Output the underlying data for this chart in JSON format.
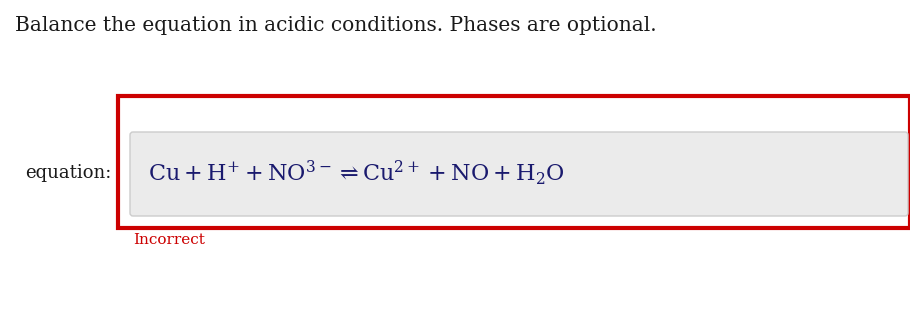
{
  "title_text": "Balance the equation in acidic conditions. Phases are optional.",
  "title_color": "#1a1a1a",
  "title_fontsize": 14.5,
  "equation_label": "equation:",
  "equation_label_color": "#1a1a1a",
  "equation_label_fontsize": 13,
  "incorrect_text": "Incorrect",
  "incorrect_color": "#cc0000",
  "incorrect_fontsize": 11,
  "outer_box_color": "#cc0000",
  "inner_box_bg": "#ebebeb",
  "inner_box_border": "#cccccc",
  "background_color": "#ffffff",
  "equation_color": "#1a1a6e",
  "equation_fontsize": 16,
  "fig_width": 9.1,
  "fig_height": 3.16,
  "dpi": 100
}
